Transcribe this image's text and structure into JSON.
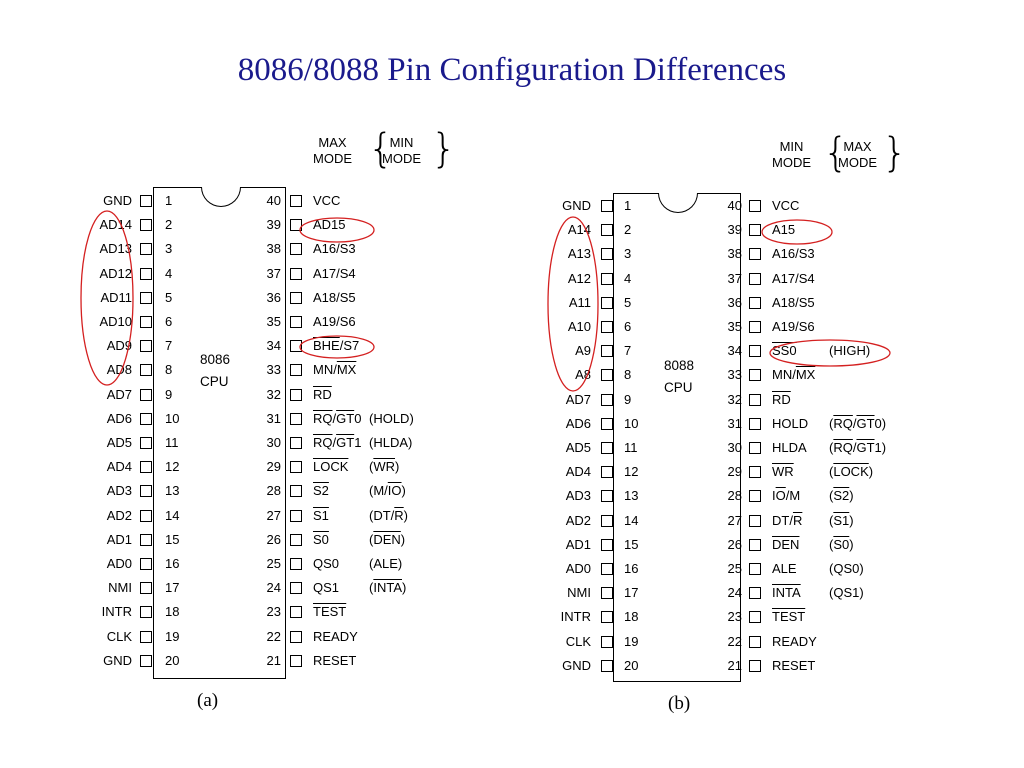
{
  "title": "8086/8088 Pin Configuration Differences",
  "diagrams": [
    {
      "id": "a",
      "caption": "(a)",
      "chip_label": [
        "8086",
        "CPU"
      ],
      "mode_header": {
        "first": [
          "MAX",
          "MODE"
        ],
        "second": [
          "MIN",
          "MODE"
        ]
      },
      "left_pins": [
        {
          "num": "1",
          "name": "GND"
        },
        {
          "num": "2",
          "name": "AD14"
        },
        {
          "num": "3",
          "name": "AD13"
        },
        {
          "num": "4",
          "name": "AD12"
        },
        {
          "num": "5",
          "name": "AD11"
        },
        {
          "num": "6",
          "name": "AD10"
        },
        {
          "num": "7",
          "name": "AD9"
        },
        {
          "num": "8",
          "name": "AD8"
        },
        {
          "num": "9",
          "name": "AD7"
        },
        {
          "num": "10",
          "name": "AD6"
        },
        {
          "num": "11",
          "name": "AD5"
        },
        {
          "num": "12",
          "name": "AD4"
        },
        {
          "num": "13",
          "name": "AD3"
        },
        {
          "num": "14",
          "name": "AD2"
        },
        {
          "num": "15",
          "name": "AD1"
        },
        {
          "num": "16",
          "name": "AD0"
        },
        {
          "num": "17",
          "name": "NMI"
        },
        {
          "num": "18",
          "name": "INTR"
        },
        {
          "num": "19",
          "name": "CLK"
        },
        {
          "num": "20",
          "name": "GND"
        }
      ],
      "right_pins": [
        {
          "num": "40",
          "name": [
            {
              "t": "VCC"
            }
          ],
          "alt": []
        },
        {
          "num": "39",
          "name": [
            {
              "t": "AD15"
            }
          ],
          "alt": []
        },
        {
          "num": "38",
          "name": [
            {
              "t": "A16/S3"
            }
          ],
          "alt": []
        },
        {
          "num": "37",
          "name": [
            {
              "t": "A17/S4"
            }
          ],
          "alt": []
        },
        {
          "num": "36",
          "name": [
            {
              "t": "A18/S5"
            }
          ],
          "alt": []
        },
        {
          "num": "35",
          "name": [
            {
              "t": "A19/S6"
            }
          ],
          "alt": []
        },
        {
          "num": "34",
          "name": [
            {
              "t": "BHE",
              "o": true
            },
            {
              "t": "/S7"
            }
          ],
          "alt": []
        },
        {
          "num": "33",
          "name": [
            {
              "t": "MN/"
            },
            {
              "t": "MX",
              "o": true
            }
          ],
          "alt": []
        },
        {
          "num": "32",
          "name": [
            {
              "t": "RD",
              "o": true
            }
          ],
          "alt": []
        },
        {
          "num": "31",
          "name": [
            {
              "t": "RQ",
              "o": true
            },
            {
              "t": "/"
            },
            {
              "t": "GT",
              "o": true
            },
            {
              "t": "0"
            }
          ],
          "alt": [
            {
              "t": "(HOLD)"
            }
          ]
        },
        {
          "num": "30",
          "name": [
            {
              "t": "RQ",
              "o": true
            },
            {
              "t": "/"
            },
            {
              "t": "GT",
              "o": true
            },
            {
              "t": "1"
            }
          ],
          "alt": [
            {
              "t": "(HLDA)"
            }
          ]
        },
        {
          "num": "29",
          "name": [
            {
              "t": "LOCK",
              "o": true
            }
          ],
          "alt": [
            {
              "t": "("
            },
            {
              "t": "WR",
              "o": true
            },
            {
              "t": ")"
            }
          ]
        },
        {
          "num": "28",
          "name": [
            {
              "t": "S2",
              "o": true
            }
          ],
          "alt": [
            {
              "t": "(M/"
            },
            {
              "t": "IO",
              "o": true
            },
            {
              "t": ")"
            }
          ]
        },
        {
          "num": "27",
          "name": [
            {
              "t": "S1",
              "o": true
            }
          ],
          "alt": [
            {
              "t": "(DT/"
            },
            {
              "t": "R",
              "o": true
            },
            {
              "t": ")"
            }
          ]
        },
        {
          "num": "26",
          "name": [
            {
              "t": "S0",
              "o": true
            }
          ],
          "alt": [
            {
              "t": "("
            },
            {
              "t": "DEN",
              "o": true
            },
            {
              "t": ")"
            }
          ]
        },
        {
          "num": "25",
          "name": [
            {
              "t": "QS0"
            }
          ],
          "alt": [
            {
              "t": "(ALE)"
            }
          ]
        },
        {
          "num": "24",
          "name": [
            {
              "t": "QS1"
            }
          ],
          "alt": [
            {
              "t": "("
            },
            {
              "t": "INTA",
              "o": true
            },
            {
              "t": ")"
            }
          ]
        },
        {
          "num": "23",
          "name": [
            {
              "t": "TEST",
              "o": true
            }
          ],
          "alt": []
        },
        {
          "num": "22",
          "name": [
            {
              "t": "READY"
            }
          ],
          "alt": []
        },
        {
          "num": "21",
          "name": [
            {
              "t": "RESET"
            }
          ],
          "alt": []
        }
      ]
    },
    {
      "id": "b",
      "caption": "(b)",
      "chip_label": [
        "8088",
        "CPU"
      ],
      "mode_header": {
        "first": [
          "MIN",
          "MODE"
        ],
        "second": [
          "MAX",
          "MODE"
        ]
      },
      "left_pins": [
        {
          "num": "1",
          "name": "GND"
        },
        {
          "num": "2",
          "name": "A14"
        },
        {
          "num": "3",
          "name": "A13"
        },
        {
          "num": "4",
          "name": "A12"
        },
        {
          "num": "5",
          "name": "A11"
        },
        {
          "num": "6",
          "name": "A10"
        },
        {
          "num": "7",
          "name": "A9"
        },
        {
          "num": "8",
          "name": "A8"
        },
        {
          "num": "9",
          "name": "AD7"
        },
        {
          "num": "10",
          "name": "AD6"
        },
        {
          "num": "11",
          "name": "AD5"
        },
        {
          "num": "12",
          "name": "AD4"
        },
        {
          "num": "13",
          "name": "AD3"
        },
        {
          "num": "14",
          "name": "AD2"
        },
        {
          "num": "15",
          "name": "AD1"
        },
        {
          "num": "16",
          "name": "AD0"
        },
        {
          "num": "17",
          "name": "NMI"
        },
        {
          "num": "18",
          "name": "INTR"
        },
        {
          "num": "19",
          "name": "CLK"
        },
        {
          "num": "20",
          "name": "GND"
        }
      ],
      "right_pins": [
        {
          "num": "40",
          "name": [
            {
              "t": "VCC"
            }
          ],
          "alt": []
        },
        {
          "num": "39",
          "name": [
            {
              "t": "A15"
            }
          ],
          "alt": []
        },
        {
          "num": "38",
          "name": [
            {
              "t": "A16/S3"
            }
          ],
          "alt": []
        },
        {
          "num": "37",
          "name": [
            {
              "t": "A17/S4"
            }
          ],
          "alt": []
        },
        {
          "num": "36",
          "name": [
            {
              "t": "A18/S5"
            }
          ],
          "alt": []
        },
        {
          "num": "35",
          "name": [
            {
              "t": "A19/S6"
            }
          ],
          "alt": []
        },
        {
          "num": "34",
          "name": [
            {
              "t": "SS0",
              "o": true
            }
          ],
          "alt": [
            {
              "t": "(HIGH)"
            }
          ]
        },
        {
          "num": "33",
          "name": [
            {
              "t": "MN/"
            },
            {
              "t": "MX",
              "o": true
            }
          ],
          "alt": []
        },
        {
          "num": "32",
          "name": [
            {
              "t": "RD",
              "o": true
            }
          ],
          "alt": []
        },
        {
          "num": "31",
          "name": [
            {
              "t": "HOLD"
            }
          ],
          "alt": [
            {
              "t": "("
            },
            {
              "t": "RQ",
              "o": true
            },
            {
              "t": "/"
            },
            {
              "t": "GT",
              "o": true
            },
            {
              "t": "0)"
            }
          ]
        },
        {
          "num": "30",
          "name": [
            {
              "t": "HLDA"
            }
          ],
          "alt": [
            {
              "t": "("
            },
            {
              "t": "RQ",
              "o": true
            },
            {
              "t": "/"
            },
            {
              "t": "GT",
              "o": true
            },
            {
              "t": "1)"
            }
          ]
        },
        {
          "num": "29",
          "name": [
            {
              "t": "WR",
              "o": true
            }
          ],
          "alt": [
            {
              "t": "("
            },
            {
              "t": "LOCK",
              "o": true
            },
            {
              "t": ")"
            }
          ]
        },
        {
          "num": "28",
          "name": [
            {
              "t": "I"
            },
            {
              "t": "O",
              "o": true
            },
            {
              "t": "/M"
            }
          ],
          "alt": [
            {
              "t": "("
            },
            {
              "t": "S2",
              "o": true
            },
            {
              "t": ")"
            }
          ]
        },
        {
          "num": "27",
          "name": [
            {
              "t": "DT/"
            },
            {
              "t": "R",
              "o": true
            }
          ],
          "alt": [
            {
              "t": "("
            },
            {
              "t": "S1",
              "o": true
            },
            {
              "t": ")"
            }
          ]
        },
        {
          "num": "26",
          "name": [
            {
              "t": "DEN",
              "o": true
            }
          ],
          "alt": [
            {
              "t": "("
            },
            {
              "t": "S0",
              "o": true
            },
            {
              "t": ")"
            }
          ]
        },
        {
          "num": "25",
          "name": [
            {
              "t": "ALE"
            }
          ],
          "alt": [
            {
              "t": "(QS0)"
            }
          ]
        },
        {
          "num": "24",
          "name": [
            {
              "t": "INTA",
              "o": true
            }
          ],
          "alt": [
            {
              "t": "(QS1)"
            }
          ]
        },
        {
          "num": "23",
          "name": [
            {
              "t": "TEST",
              "o": true
            }
          ],
          "alt": []
        },
        {
          "num": "22",
          "name": [
            {
              "t": "READY"
            }
          ],
          "alt": []
        },
        {
          "num": "21",
          "name": [
            {
              "t": "RESET"
            }
          ],
          "alt": []
        }
      ]
    }
  ],
  "colors": {
    "title": "#1a1a8c",
    "highlight": "#d42020"
  }
}
